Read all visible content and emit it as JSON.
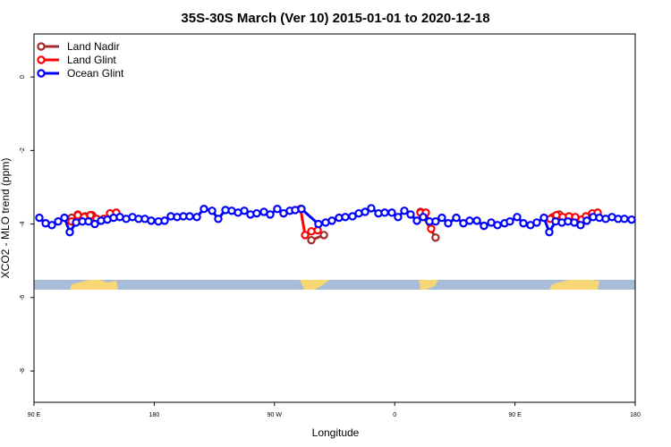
{
  "chart_data": {
    "type": "line",
    "title": "35S-30S March (Ver 10)   2015-01-01 to 2020-12-18",
    "xlabel": "Longitude",
    "ylabel": "XCO2 - MLO trend (ppm)",
    "xlim": [
      90,
      540
    ],
    "ylim": [
      -8.85,
      1.17
    ],
    "xticks": [
      {
        "value": 90,
        "label": "90 E"
      },
      180,
      {
        "value": 270,
        "label": "90 W"
      },
      {
        "value": 360,
        "label": "0"
      },
      {
        "value": 450,
        "label": "90 E"
      },
      {
        "value": 540,
        "label": "180"
      }
    ],
    "yticks": [
      0,
      -2,
      -4,
      -6,
      -8
    ],
    "legend": "top-left",
    "series": [
      {
        "name": "Land Nadir",
        "color": "#a52a2a",
        "x": [
          118.1,
          122.8,
          128.2,
          133.5,
          null,
          297.6,
          307.0,
          null,
          379.3,
          390.6,
          null,
          478.4,
          483.1
        ],
        "values": [
          -3.83,
          -3.74,
          -3.79,
          -3.76,
          null,
          -4.44,
          -4.3,
          null,
          -3.67,
          -4.37,
          null,
          -3.81,
          -3.74
        ]
      },
      {
        "name": "Land Glint",
        "color": "#ff0000",
        "x": [
          118.1,
          122.8,
          127.5,
          132.2,
          136.9,
          142.2,
          146.9,
          151.6,
          null,
          289.5,
          292.9,
          297.6,
          302.3,
          null,
          379.3,
          383.3,
          387.3,
          null,
          476.4,
          481.0,
          485.7,
          490.4,
          495.1,
          499.8,
          503.1,
          507.8,
          511.9
        ],
        "values": [
          -3.93,
          -3.76,
          -3.81,
          -3.76,
          -3.86,
          -3.86,
          -3.71,
          -3.69,
          null,
          -3.59,
          -4.3,
          -4.2,
          -4.17,
          null,
          -3.69,
          -3.69,
          -4.13,
          null,
          -3.86,
          -3.76,
          -3.81,
          -3.79,
          -3.81,
          -3.88,
          -3.79,
          -3.71,
          -3.69
        ]
      },
      {
        "name": "Ocean Glint",
        "color": "#0000ff",
        "x": [
          94.0,
          98.7,
          103.4,
          108.1,
          112.8,
          116.8,
          121.5,
          126.2,
          130.8,
          135.5,
          140.2,
          144.9,
          149.6,
          154.3,
          159.0,
          163.7,
          168.3,
          173.0,
          177.7,
          183.1,
          187.8,
          192.4,
          197.1,
          201.8,
          206.5,
          211.9,
          217.2,
          223.3,
          227.9,
          233.3,
          238.0,
          242.7,
          247.4,
          252.0,
          256.7,
          262.1,
          266.8,
          272.1,
          276.8,
          281.5,
          285.5,
          290.2,
          302.9,
          308.3,
          313.0,
          318.3,
          323.0,
          328.4,
          333.1,
          337.8,
          342.4,
          347.8,
          352.5,
          357.8,
          362.5,
          367.2,
          371.9,
          376.6,
          381.3,
          386.0,
          390.6,
          395.3,
          400.0,
          406.1,
          411.4,
          416.1,
          421.5,
          426.8,
          432.2,
          436.9,
          442.2,
          446.2,
          451.6,
          456.3,
          461.6,
          466.3,
          471.7,
          475.7,
          480.4,
          485.1,
          489.7,
          494.4,
          499.1,
          503.8,
          508.5,
          513.2,
          517.9,
          522.6,
          527.2,
          531.9,
          537.3
        ],
        "values": [
          -3.83,
          -3.98,
          -4.03,
          -3.93,
          -3.83,
          -4.22,
          -3.96,
          -3.93,
          -3.93,
          -4.0,
          -3.91,
          -3.88,
          -3.83,
          -3.81,
          -3.86,
          -3.81,
          -3.86,
          -3.86,
          -3.91,
          -3.93,
          -3.91,
          -3.79,
          -3.81,
          -3.79,
          -3.79,
          -3.81,
          -3.59,
          -3.64,
          -3.86,
          -3.62,
          -3.64,
          -3.69,
          -3.64,
          -3.74,
          -3.71,
          -3.67,
          -3.74,
          -3.59,
          -3.71,
          -3.64,
          -3.62,
          -3.59,
          -4.0,
          -3.96,
          -3.91,
          -3.83,
          -3.81,
          -3.79,
          -3.71,
          -3.67,
          -3.57,
          -3.71,
          -3.69,
          -3.69,
          -3.81,
          -3.64,
          -3.74,
          -3.91,
          -3.81,
          -3.93,
          -3.93,
          -3.83,
          -3.98,
          -3.83,
          -3.98,
          -3.91,
          -3.91,
          -4.05,
          -3.96,
          -4.03,
          -3.98,
          -3.93,
          -3.81,
          -3.98,
          -4.03,
          -3.96,
          -3.83,
          -4.22,
          -3.93,
          -3.96,
          -3.93,
          -3.96,
          -4.03,
          -3.91,
          -3.81,
          -3.83,
          -3.86,
          -3.81,
          -3.86,
          -3.86,
          -3.88
        ]
      }
    ]
  }
}
